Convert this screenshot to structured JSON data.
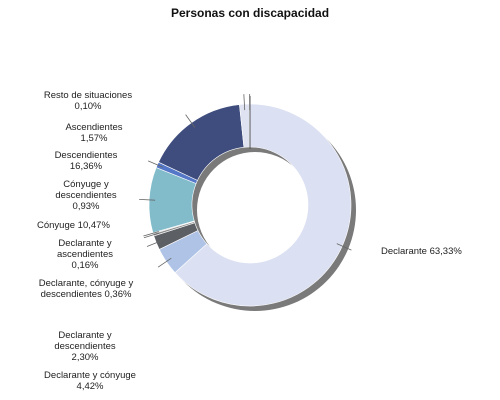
{
  "chart_data": {
    "type": "pie",
    "title": "Personas con discapacidad",
    "donut": true,
    "legend": "none",
    "slices": [
      {
        "label": "Declarante",
        "value": 63.33,
        "label_text": "Declarante 63,33%",
        "color": "#dbe0f2"
      },
      {
        "label": "Declarante y cónyuge",
        "value": 4.42,
        "label_text": "Declarante y cónyuge 4,42%",
        "color": "#aec3e6"
      },
      {
        "label": "Declarante y descendientes",
        "value": 2.3,
        "label_text": "Declarante y descendientes 2,30%",
        "color": "#5c5f64"
      },
      {
        "label": "Declarante, cónyuge y descendientes",
        "value": 0.36,
        "label_text": "Declarante, cónyuge y descendientes 0,36%",
        "color": "#8f8f8f"
      },
      {
        "label": "Declarante y ascendientes",
        "value": 0.16,
        "label_text": "Declarante y ascendientes 0,16%",
        "color": "#c9cdd2"
      },
      {
        "label": "Cónyuge",
        "value": 10.47,
        "label_text": "Cónyuge 10,47%",
        "color": "#82bccb"
      },
      {
        "label": "Cónyuge y descendientes",
        "value": 0.93,
        "label_text": "Cónyuge y descendientes 0,93%",
        "color": "#5577c8"
      },
      {
        "label": "Descendientes",
        "value": 16.36,
        "label_text": "Descendientes 16,36%",
        "color": "#3e4c7e"
      },
      {
        "label": "Ascendientes",
        "value": 1.57,
        "label_text": "Ascendientes 1,57%",
        "color": "#dfe3f1"
      },
      {
        "label": "Resto de situaciones",
        "value": 0.1,
        "label_text": "Resto de situaciones 0,10%",
        "color": "#9aa3b0"
      }
    ]
  }
}
